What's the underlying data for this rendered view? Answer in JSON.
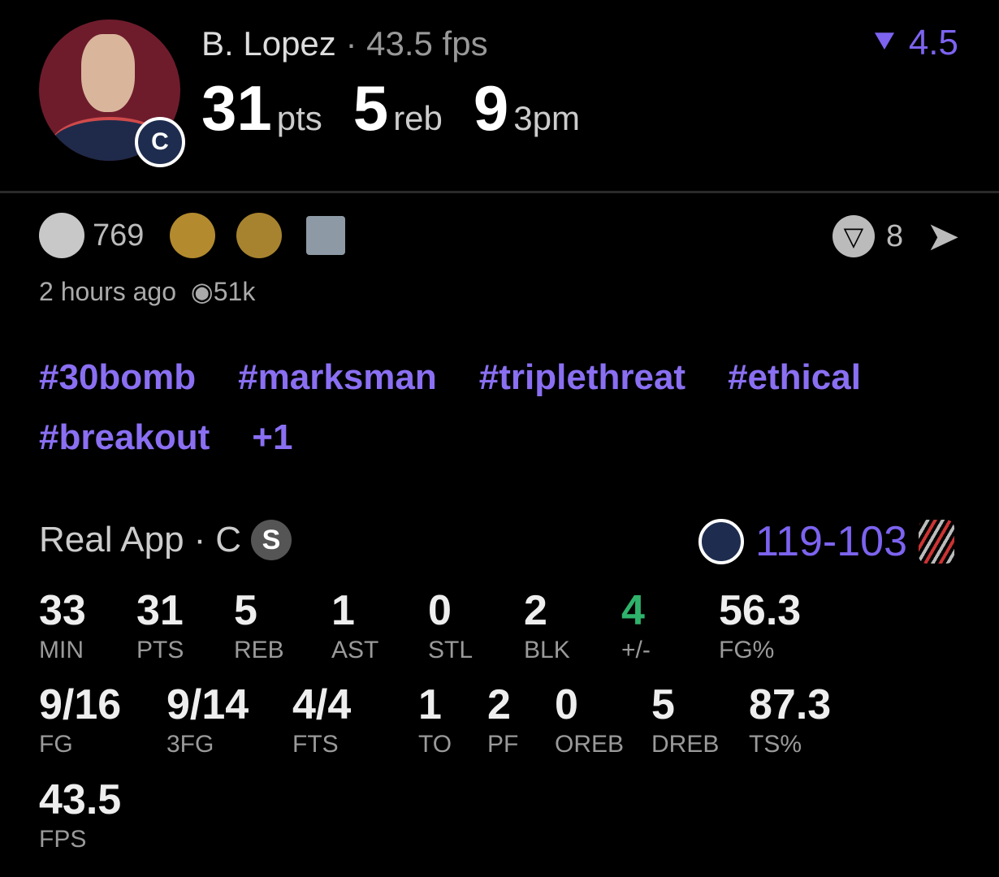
{
  "header": {
    "player": "B. Lopez",
    "separator": "·",
    "fps_label": "43.5 fps",
    "points": "31",
    "points_unit": "pts",
    "rebounds": "5",
    "rebounds_unit": "reb",
    "threes": "9",
    "threes_unit": "3pm",
    "projection": "4.5",
    "team_badge_letter": "C"
  },
  "engagement": {
    "reaction_count": "769",
    "reactions": [
      "smile-icon",
      "drooling-face-icon",
      "old-man-face-icon",
      "chart-decreasing-icon"
    ],
    "comments_count": "8",
    "time": "2 hours ago",
    "views": "51k"
  },
  "tags": [
    "#30bomb",
    "#marksman",
    "#triplethreat",
    "#ethical",
    "#breakout",
    "+1"
  ],
  "game": {
    "source": "Real App",
    "position": "C",
    "position_sep": "·",
    "starter_badge": "S",
    "score": "119-103"
  },
  "stats_row1": [
    {
      "v": "33",
      "l": "MIN"
    },
    {
      "v": "31",
      "l": "PTS"
    },
    {
      "v": "5",
      "l": "REB"
    },
    {
      "v": "1",
      "l": "AST"
    },
    {
      "v": "0",
      "l": "STL"
    },
    {
      "v": "2",
      "l": "BLK"
    },
    {
      "v": "4",
      "l": "+/-"
    },
    {
      "v": "56.3",
      "l": "FG%"
    }
  ],
  "stats_row2": [
    {
      "v": "9/16",
      "l": "FG"
    },
    {
      "v": "9/14",
      "l": "3FG"
    },
    {
      "v": "4/4",
      "l": "FTS"
    },
    {
      "v": "1",
      "l": "TO"
    },
    {
      "v": "2",
      "l": "PF"
    },
    {
      "v": "0",
      "l": "OREB"
    },
    {
      "v": "5",
      "l": "DREB"
    },
    {
      "v": "87.3",
      "l": "TS%"
    }
  ],
  "stats_row3": [
    {
      "v": "43.5",
      "l": "FPS"
    }
  ],
  "colors": {
    "accent": "#7d63f0",
    "positive": "#2fb36b",
    "avatar_bg": "#6e1c2c"
  }
}
